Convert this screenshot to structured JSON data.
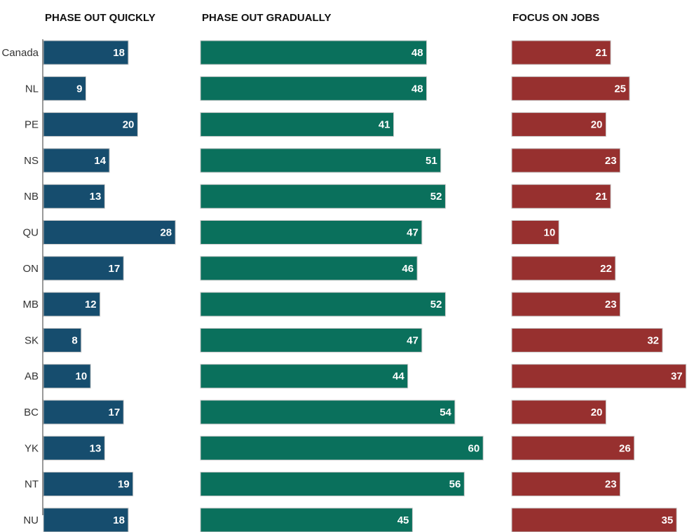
{
  "chart_data": {
    "type": "bar",
    "orientation": "horizontal",
    "categories": [
      "Canada",
      "NL",
      "PE",
      "NS",
      "NB",
      "QU",
      "ON",
      "MB",
      "SK",
      "AB",
      "BC",
      "YK",
      "NT",
      "NU"
    ],
    "series": [
      {
        "name": "PHASE OUT QUICKLY",
        "color": "#164d6e",
        "values": [
          18,
          9,
          20,
          14,
          13,
          28,
          17,
          12,
          8,
          10,
          17,
          13,
          19,
          18
        ]
      },
      {
        "name": "PHASE OUT GRADUALLY",
        "color": "#0a705c",
        "values": [
          48,
          48,
          41,
          51,
          52,
          47,
          46,
          52,
          47,
          44,
          54,
          60,
          56,
          45
        ]
      },
      {
        "name": "FOCUS ON JOBS",
        "color": "#97302f",
        "values": [
          21,
          25,
          20,
          23,
          21,
          10,
          22,
          23,
          32,
          37,
          20,
          26,
          23,
          35
        ]
      }
    ],
    "legend": "none",
    "grid": false
  }
}
